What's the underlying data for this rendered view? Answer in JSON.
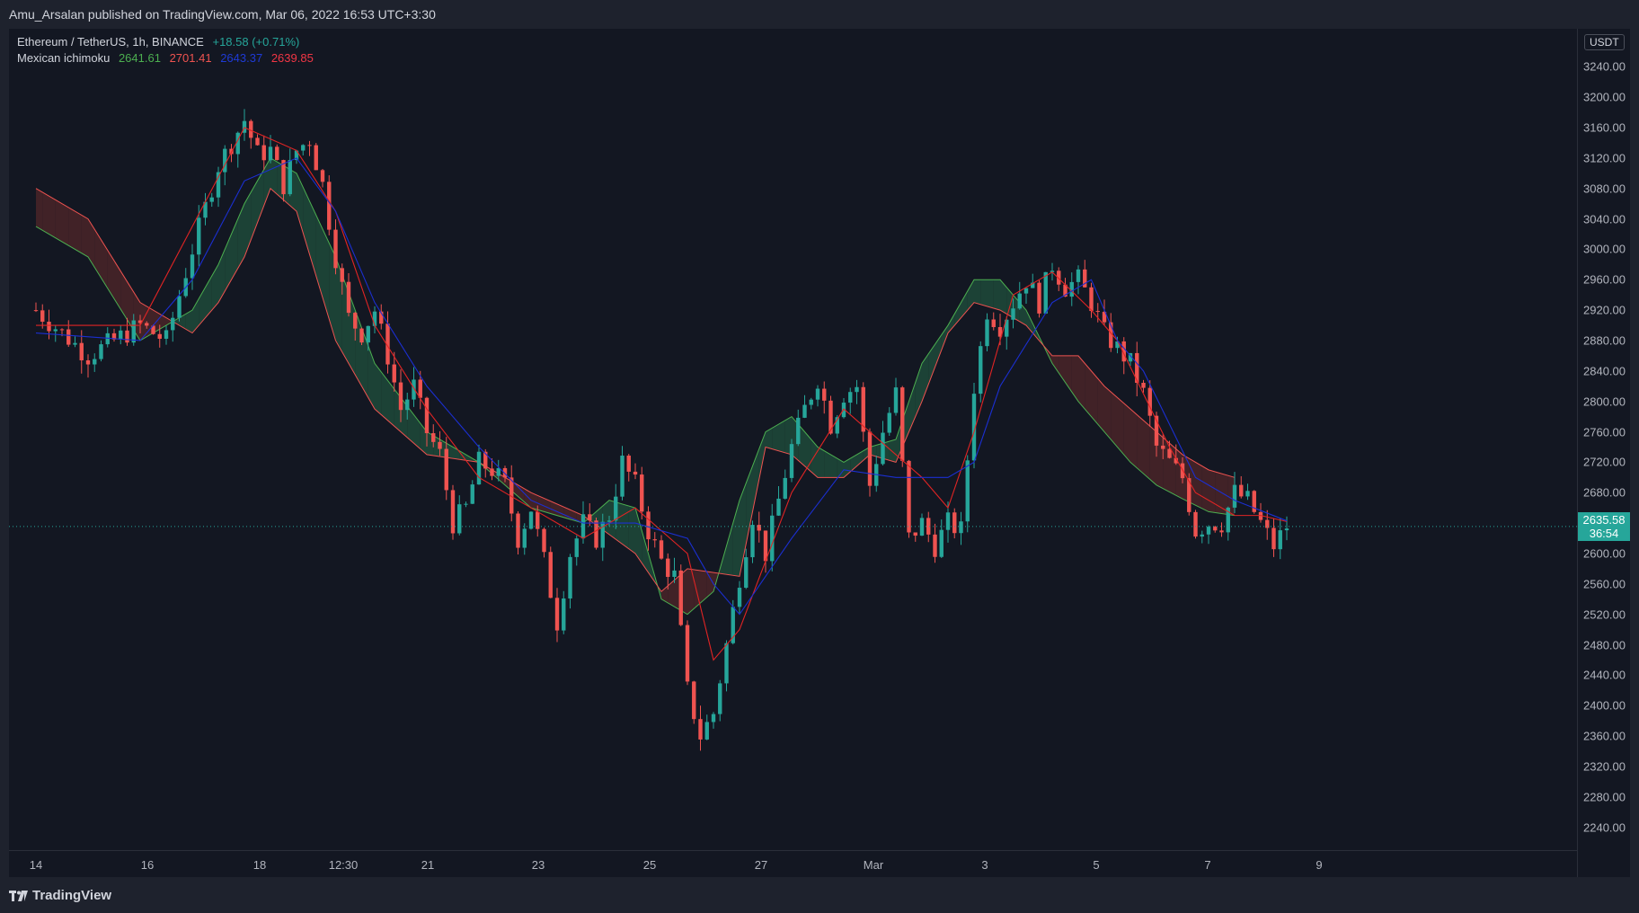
{
  "header": {
    "publisher": "Amu_Arsalan published on TradingView.com, Mar 06, 2022 16:53 UTC+3:30"
  },
  "legend": {
    "symbol": "Ethereum / TetherUS, 1h, BINANCE",
    "change": "+18.58 (+0.71%)",
    "indicator_name": "Mexican ichimoku",
    "indicator_values": [
      "2641.61",
      "2701.41",
      "2643.37",
      "2639.85"
    ],
    "indicator_colors": [
      "#4caf50",
      "#ef5350",
      "#1e3ad6",
      "#f23645"
    ]
  },
  "price_axis": {
    "unit": "USDT",
    "ticks": [
      "3240.00",
      "3200.00",
      "3160.00",
      "3120.00",
      "3080.00",
      "3040.00",
      "3000.00",
      "2960.00",
      "2920.00",
      "2880.00",
      "2840.00",
      "2800.00",
      "2760.00",
      "2720.00",
      "2680.00",
      "2600.00",
      "2560.00",
      "2520.00",
      "2480.00",
      "2440.00",
      "2400.00",
      "2360.00",
      "2320.00",
      "2280.00",
      "2240.00"
    ],
    "last_price": "2635.58",
    "countdown": "36:54"
  },
  "time_axis": {
    "ticks": [
      "14",
      "16",
      "18",
      "12:30",
      "21",
      "23",
      "25",
      "27",
      "Mar",
      "3",
      "5",
      "7",
      "9"
    ]
  },
  "footer": {
    "brand": "TradingView"
  },
  "colors": {
    "background": "#131722",
    "up": "#26a69a",
    "down": "#ef5350",
    "tenkan": "#e02424",
    "kijun": "#1b2fd1",
    "span_a": "#4caf50",
    "span_b": "#ef5350",
    "cloud_bull": "#1f4a3a",
    "cloud_bear": "#4a2428"
  },
  "chart_data": {
    "type": "candlestick",
    "symbol": "ETH/USDT",
    "timeframe": "1h",
    "y_range": [
      2210,
      3290
    ],
    "x_labels": [
      "14",
      "16",
      "18",
      "12:30",
      "21",
      "23",
      "25",
      "27",
      "Mar",
      "3",
      "5",
      "7",
      "9"
    ],
    "price_path": [
      [
        0,
        2920
      ],
      [
        4,
        2860
      ],
      [
        8,
        2900
      ],
      [
        10,
        2880
      ],
      [
        12,
        3000
      ],
      [
        14,
        3110
      ],
      [
        16,
        3170
      ],
      [
        17,
        3125
      ],
      [
        18,
        3130
      ],
      [
        19,
        3085
      ],
      [
        20,
        3130
      ],
      [
        21,
        3145
      ],
      [
        22,
        3085
      ],
      [
        23,
        2990
      ],
      [
        24,
        2910
      ],
      [
        25,
        2890
      ],
      [
        26,
        2920
      ],
      [
        27,
        2860
      ],
      [
        28,
        2790
      ],
      [
        29,
        2820
      ],
      [
        30,
        2760
      ],
      [
        31,
        2730
      ],
      [
        32,
        2640
      ],
      [
        33,
        2660
      ],
      [
        34,
        2720
      ],
      [
        35,
        2710
      ],
      [
        36,
        2690
      ],
      [
        37,
        2620
      ],
      [
        38,
        2660
      ],
      [
        39,
        2590
      ],
      [
        40,
        2510
      ],
      [
        41,
        2600
      ],
      [
        42,
        2640
      ],
      [
        43,
        2620
      ],
      [
        44,
        2650
      ],
      [
        45,
        2720
      ],
      [
        46,
        2690
      ],
      [
        47,
        2630
      ],
      [
        48,
        2590
      ],
      [
        49,
        2570
      ],
      [
        50,
        2420
      ],
      [
        51,
        2360
      ],
      [
        52,
        2390
      ],
      [
        53,
        2480
      ],
      [
        54,
        2570
      ],
      [
        55,
        2650
      ],
      [
        56,
        2600
      ],
      [
        57,
        2670
      ],
      [
        58,
        2740
      ],
      [
        59,
        2790
      ],
      [
        60,
        2830
      ],
      [
        61,
        2770
      ],
      [
        62,
        2810
      ],
      [
        63,
        2820
      ],
      [
        64,
        2690
      ],
      [
        65,
        2760
      ],
      [
        66,
        2810
      ],
      [
        67,
        2620
      ],
      [
        68,
        2640
      ],
      [
        69,
        2610
      ],
      [
        70,
        2640
      ],
      [
        71,
        2630
      ],
      [
        72,
        2820
      ],
      [
        73,
        2920
      ],
      [
        74,
        2900
      ],
      [
        75,
        2930
      ],
      [
        76,
        2960
      ],
      [
        77,
        2930
      ],
      [
        78,
        2980
      ],
      [
        79,
        2950
      ],
      [
        80,
        2960
      ],
      [
        81,
        2930
      ],
      [
        82,
        2890
      ],
      [
        83,
        2870
      ],
      [
        84,
        2850
      ],
      [
        85,
        2810
      ],
      [
        86,
        2740
      ],
      [
        87,
        2720
      ],
      [
        88,
        2700
      ],
      [
        89,
        2630
      ],
      [
        90,
        2640
      ],
      [
        91,
        2640
      ],
      [
        92,
        2680
      ],
      [
        93,
        2670
      ],
      [
        94,
        2640
      ],
      [
        95,
        2610
      ],
      [
        96,
        2636
      ]
    ],
    "indicators": {
      "name": "Mexican ichimoku",
      "values": [
        2641.61,
        2701.41,
        2643.37,
        2639.85
      ],
      "tenkan": [
        [
          0,
          2900
        ],
        [
          8,
          2900
        ],
        [
          12,
          3030
        ],
        [
          16,
          3160
        ],
        [
          20,
          3130
        ],
        [
          23,
          3050
        ],
        [
          26,
          2900
        ],
        [
          30,
          2790
        ],
        [
          34,
          2700
        ],
        [
          38,
          2660
        ],
        [
          42,
          2620
        ],
        [
          46,
          2660
        ],
        [
          50,
          2600
        ],
        [
          52,
          2460
        ],
        [
          54,
          2500
        ],
        [
          58,
          2680
        ],
        [
          62,
          2790
        ],
        [
          64,
          2760
        ],
        [
          68,
          2700
        ],
        [
          70,
          2660
        ],
        [
          72,
          2760
        ],
        [
          75,
          2940
        ],
        [
          78,
          2970
        ],
        [
          81,
          2920
        ],
        [
          83,
          2880
        ],
        [
          85,
          2810
        ],
        [
          87,
          2740
        ],
        [
          89,
          2680
        ],
        [
          92,
          2650
        ],
        [
          94,
          2650
        ],
        [
          96,
          2642
        ]
      ],
      "kijun": [
        [
          0,
          2890
        ],
        [
          8,
          2880
        ],
        [
          12,
          2960
        ],
        [
          16,
          3090
        ],
        [
          20,
          3120
        ],
        [
          23,
          3050
        ],
        [
          26,
          2930
        ],
        [
          30,
          2820
        ],
        [
          34,
          2740
        ],
        [
          38,
          2670
        ],
        [
          42,
          2640
        ],
        [
          46,
          2640
        ],
        [
          50,
          2620
        ],
        [
          52,
          2560
        ],
        [
          54,
          2520
        ],
        [
          58,
          2620
        ],
        [
          62,
          2710
        ],
        [
          66,
          2700
        ],
        [
          70,
          2700
        ],
        [
          72,
          2720
        ],
        [
          74,
          2820
        ],
        [
          78,
          2930
        ],
        [
          81,
          2960
        ],
        [
          83,
          2880
        ],
        [
          85,
          2840
        ],
        [
          87,
          2770
        ],
        [
          89,
          2700
        ],
        [
          92,
          2670
        ],
        [
          96,
          2643
        ]
      ],
      "span_a": [
        [
          0,
          3030
        ],
        [
          4,
          2990
        ],
        [
          8,
          2880
        ],
        [
          12,
          2920
        ],
        [
          14,
          2980
        ],
        [
          16,
          3060
        ],
        [
          18,
          3120
        ],
        [
          20,
          3100
        ],
        [
          23,
          2990
        ],
        [
          26,
          2850
        ],
        [
          30,
          2760
        ],
        [
          34,
          2720
        ],
        [
          38,
          2660
        ],
        [
          42,
          2640
        ],
        [
          44,
          2670
        ],
        [
          46,
          2660
        ],
        [
          48,
          2540
        ],
        [
          50,
          2520
        ],
        [
          52,
          2550
        ],
        [
          54,
          2670
        ],
        [
          56,
          2760
        ],
        [
          58,
          2780
        ],
        [
          60,
          2740
        ],
        [
          62,
          2720
        ],
        [
          64,
          2740
        ],
        [
          66,
          2750
        ],
        [
          68,
          2850
        ],
        [
          70,
          2900
        ],
        [
          72,
          2960
        ],
        [
          74,
          2960
        ],
        [
          76,
          2920
        ],
        [
          78,
          2850
        ],
        [
          80,
          2800
        ],
        [
          82,
          2760
        ],
        [
          84,
          2720
        ],
        [
          86,
          2690
        ],
        [
          88,
          2672
        ],
        [
          90,
          2655
        ],
        [
          92,
          2650
        ]
      ],
      "span_b": [
        [
          0,
          3080
        ],
        [
          4,
          3040
        ],
        [
          8,
          2930
        ],
        [
          12,
          2890
        ],
        [
          14,
          2930
        ],
        [
          16,
          2990
        ],
        [
          18,
          3080
        ],
        [
          20,
          3050
        ],
        [
          23,
          2880
        ],
        [
          26,
          2790
        ],
        [
          30,
          2730
        ],
        [
          34,
          2720
        ],
        [
          38,
          2680
        ],
        [
          42,
          2650
        ],
        [
          46,
          2600
        ],
        [
          48,
          2550
        ],
        [
          50,
          2580
        ],
        [
          54,
          2570
        ],
        [
          56,
          2740
        ],
        [
          58,
          2730
        ],
        [
          60,
          2700
        ],
        [
          62,
          2700
        ],
        [
          64,
          2730
        ],
        [
          66,
          2720
        ],
        [
          68,
          2800
        ],
        [
          70,
          2890
        ],
        [
          72,
          2930
        ],
        [
          74,
          2920
        ],
        [
          76,
          2900
        ],
        [
          78,
          2860
        ],
        [
          80,
          2860
        ],
        [
          82,
          2820
        ],
        [
          84,
          2790
        ],
        [
          86,
          2760
        ],
        [
          88,
          2730
        ],
        [
          90,
          2710
        ],
        [
          92,
          2700
        ]
      ]
    }
  }
}
